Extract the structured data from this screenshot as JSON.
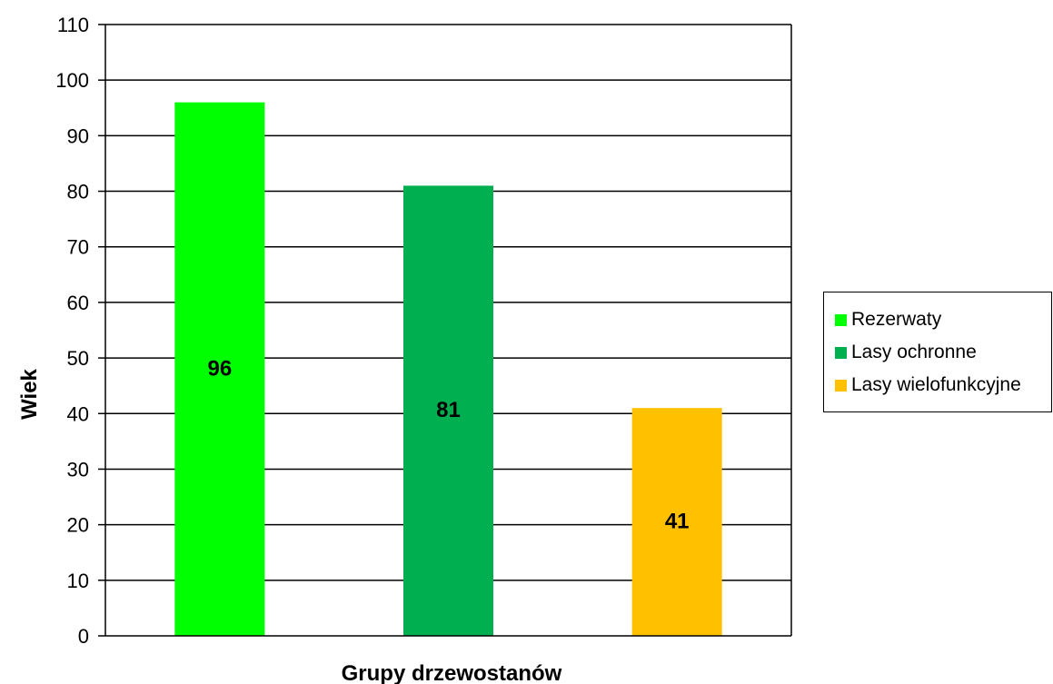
{
  "chart_data": {
    "type": "bar",
    "xlabel": "Grupy drzewostanów",
    "ylabel": "Wiek",
    "ylim": [
      0,
      110
    ],
    "yticks": [
      0,
      10,
      20,
      30,
      40,
      50,
      60,
      70,
      80,
      90,
      100,
      110
    ],
    "grid": true,
    "legend_position": "right",
    "series": [
      {
        "name": "Rezerwaty",
        "value": 96,
        "label": "96",
        "color": "#00ff00"
      },
      {
        "name": "Lasy ochronne",
        "value": 81,
        "label": "81",
        "color": "#00b050"
      },
      {
        "name": "Lasy wielofunkcyjne",
        "value": 41,
        "label": "41",
        "color": "#ffc000"
      }
    ]
  }
}
